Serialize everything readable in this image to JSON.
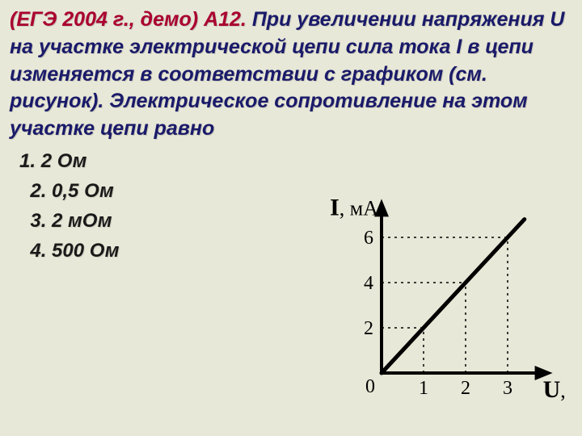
{
  "question": {
    "lead": "(ЕГЭ 2004 г., демо) А12.",
    "body": " При увеличении напряжения U на участке электрической цепи сила тока I в цепи изменяется в соответствии с графиком (см. рисунок). Электрическое сопротивление на этом участке цепи равно"
  },
  "answers": [
    {
      "num": "1.",
      "text": "2 Ом"
    },
    {
      "num": "2.",
      "text": "0,5 Ом"
    },
    {
      "num": "3.",
      "text": "2 мОм"
    },
    {
      "num": "4.",
      "text": "500 Ом"
    }
  ],
  "chart": {
    "type": "line",
    "y_label": "I",
    "y_unit": ", мА",
    "x_label": "U",
    "x_unit": ", В",
    "x_ticks": [
      "1",
      "2",
      "3"
    ],
    "y_ticks": [
      "2",
      "4",
      "6"
    ],
    "origin_label": "0",
    "line": {
      "x1": 0,
      "y1": 0,
      "x2": 3.4,
      "y2": 6.8
    },
    "xlim": [
      0,
      3.8
    ],
    "ylim": [
      0,
      7.2
    ],
    "colors": {
      "axis": "#000000",
      "line": "#000000",
      "guide": "#000000",
      "text": "#000000",
      "background": "#e8e8d8"
    },
    "line_width_main": 5,
    "line_width_axis": 4,
    "guide_dash": "3,5",
    "font_size_axis_label": 30,
    "font_size_tick": 24
  }
}
